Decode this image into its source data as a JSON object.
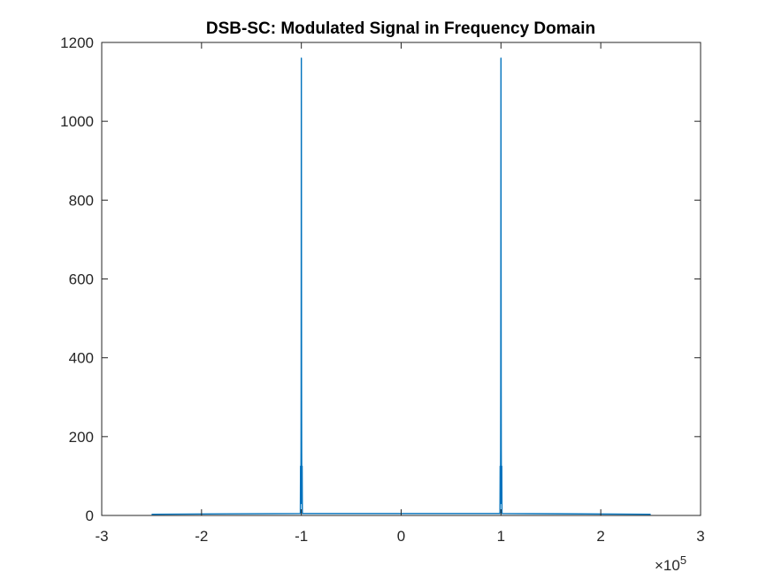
{
  "chart_data": {
    "type": "line",
    "title": "DSB-SC: Modulated Signal in Frequency Domain",
    "xlabel": "",
    "ylabel": "",
    "xlim": [
      -300000,
      300000
    ],
    "ylim": [
      0,
      1200
    ],
    "x_ticks": [
      -300000,
      -200000,
      -100000,
      0,
      100000,
      200000,
      300000
    ],
    "x_tick_labels": [
      "-3",
      "-2",
      "-1",
      "0",
      "1",
      "2",
      "3"
    ],
    "x_exponent_label": "×10",
    "x_exponent_power": "5",
    "y_ticks": [
      0,
      200,
      400,
      600,
      800,
      1000,
      1200
    ],
    "y_tick_labels": [
      "0",
      "200",
      "400",
      "600",
      "800",
      "1000",
      "1200"
    ],
    "grid": false,
    "series_color": "#0072BD",
    "series": [
      {
        "x": [
          -250000,
          -101000,
          -100800,
          -100600,
          -100400,
          -100300,
          -100200,
          -100100,
          -100000,
          -99900,
          -99800,
          -99700,
          -99600,
          -99400,
          -99200,
          -99000,
          99000,
          99200,
          99400,
          99600,
          99700,
          99800,
          99900,
          100000,
          100100,
          100200,
          100300,
          100400,
          100600,
          100800,
          101000,
          250000
        ],
        "y": [
          3,
          5,
          125,
          30,
          100,
          170,
          335,
          665,
          1160,
          665,
          335,
          170,
          100,
          30,
          125,
          5,
          5,
          125,
          30,
          100,
          170,
          335,
          665,
          1160,
          665,
          335,
          170,
          100,
          30,
          125,
          5,
          3
        ]
      }
    ]
  }
}
